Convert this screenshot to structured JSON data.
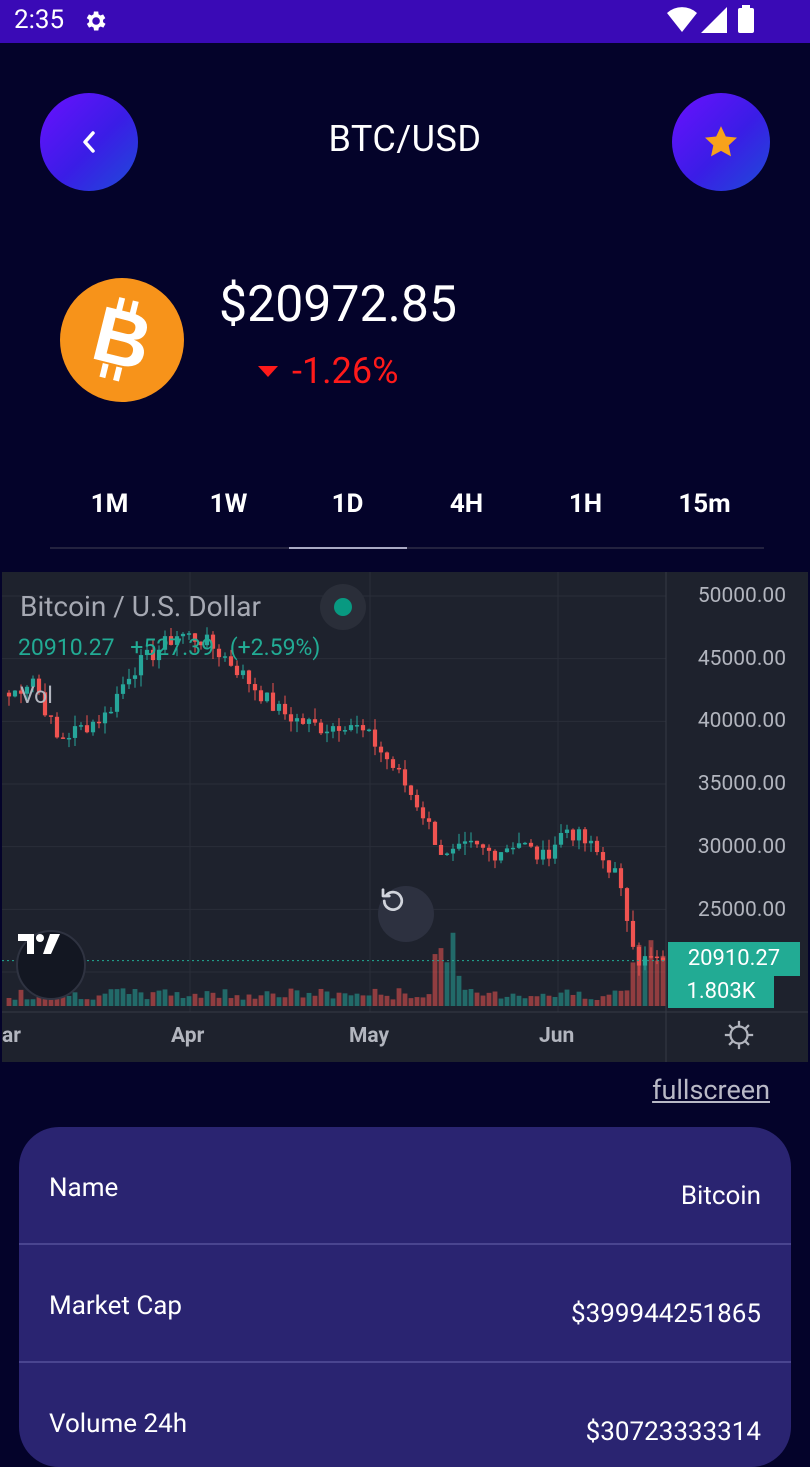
{
  "status_bar": {
    "time": "2:35"
  },
  "header": {
    "title": "BTC/USD"
  },
  "coin": {
    "price": "$20972.85",
    "change": "-1.26%"
  },
  "tabs": [
    {
      "label": "1M"
    },
    {
      "label": "1W"
    },
    {
      "label": "1D",
      "active": true
    },
    {
      "label": "4H"
    },
    {
      "label": "1H"
    },
    {
      "label": "15m"
    }
  ],
  "chart": {
    "title": "Bitcoin / U.S. Dollar",
    "last": "20910.27",
    "change": "+527.39",
    "change_pct": "(+2.59%)",
    "vol_label": "Vol",
    "price_tag": "20910.27",
    "vol_tag": "1.803K",
    "y_ticks": [
      "50000.00",
      "45000.00",
      "40000.00",
      "35000.00",
      "30000.00",
      "25000.00"
    ],
    "x_ticks": [
      "ar",
      "Apr",
      "May",
      "Jun"
    ]
  },
  "chart_data": {
    "type": "candlestick",
    "title": "Bitcoin / U.S. Dollar",
    "ylim": [
      20000,
      50000
    ],
    "x": [
      "Mar",
      "Apr",
      "May",
      "Jun"
    ],
    "close_approx": [
      42000,
      43500,
      38500,
      39500,
      40500,
      44000,
      45500,
      47000,
      46500,
      45000,
      43000,
      41000,
      40000,
      39500,
      40000,
      38500,
      36000,
      33000,
      29000,
      30000,
      29500,
      30500,
      29000,
      31500,
      30000,
      28000,
      21000,
      20910.27
    ],
    "colors": {
      "up": "#26a69a",
      "down": "#ef5350"
    }
  },
  "links": {
    "fullscreen": "fullscreen"
  },
  "info": [
    {
      "key": "Name",
      "value": "Bitcoin"
    },
    {
      "key": "Market Cap",
      "value": "$399944251865"
    },
    {
      "key": "Volume 24h",
      "value": "$30723333314"
    }
  ],
  "colors": {
    "background": "#04032a",
    "status_bar": "#3a0ab6",
    "card": "#2a2471",
    "negative": "#ff1a1a",
    "chart_up": "#22ab94"
  }
}
